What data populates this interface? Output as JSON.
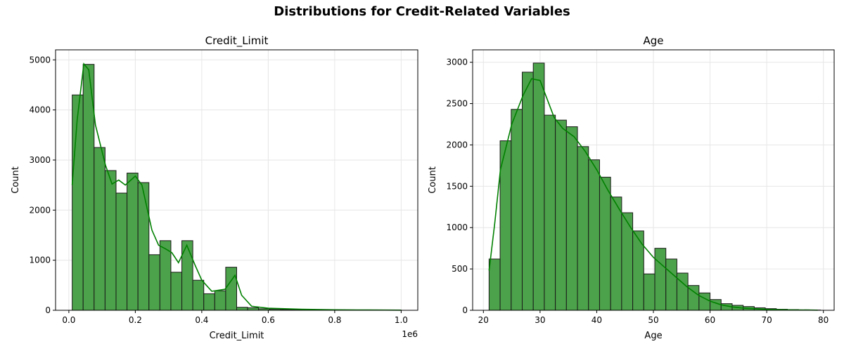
{
  "suptitle": "Distributions for Credit-Related Variables",
  "colors": {
    "bar": "#4ca24a",
    "edge": "#1a1a1a",
    "kde": "#008000",
    "grid": "#e6e6e6"
  },
  "chart_data": [
    {
      "type": "bar",
      "title": "Credit_Limit",
      "xlabel": "Credit_Limit",
      "ylabel": "Count",
      "offset_text": "1e6",
      "bin_start": 0.01,
      "bin_width": 0.033,
      "values": [
        4300,
        4910,
        3250,
        2790,
        2340,
        2740,
        2550,
        1110,
        1390,
        760,
        1390,
        600,
        330,
        390,
        860,
        60,
        50,
        30,
        20,
        15,
        10,
        10,
        8,
        6,
        5,
        4,
        3,
        3,
        2,
        2
      ],
      "kde": [
        [
          0.01,
          2500
        ],
        [
          0.025,
          3800
        ],
        [
          0.045,
          4920
        ],
        [
          0.06,
          4800
        ],
        [
          0.08,
          3700
        ],
        [
          0.11,
          2900
        ],
        [
          0.13,
          2520
        ],
        [
          0.15,
          2600
        ],
        [
          0.17,
          2500
        ],
        [
          0.2,
          2680
        ],
        [
          0.22,
          2500
        ],
        [
          0.25,
          1600
        ],
        [
          0.27,
          1300
        ],
        [
          0.29,
          1230
        ],
        [
          0.31,
          1150
        ],
        [
          0.33,
          950
        ],
        [
          0.355,
          1300
        ],
        [
          0.38,
          900
        ],
        [
          0.4,
          600
        ],
        [
          0.43,
          380
        ],
        [
          0.47,
          420
        ],
        [
          0.5,
          700
        ],
        [
          0.52,
          300
        ],
        [
          0.55,
          80
        ],
        [
          0.6,
          40
        ],
        [
          0.7,
          20
        ],
        [
          0.8,
          10
        ],
        [
          0.9,
          5
        ],
        [
          1.0,
          3
        ]
      ],
      "xlim": [
        -0.04,
        1.05
      ],
      "ylim": [
        0,
        5200
      ],
      "xticks": [
        0.0,
        0.2,
        0.4,
        0.6,
        0.8,
        1.0
      ],
      "xtick_labels": [
        "0.0",
        "0.2",
        "0.4",
        "0.6",
        "0.8",
        "1.0"
      ],
      "yticks": [
        0,
        1000,
        2000,
        3000,
        4000,
        5000
      ],
      "grid": true
    },
    {
      "type": "bar",
      "title": "Age",
      "xlabel": "Age",
      "ylabel": "Count",
      "bin_start": 21,
      "bin_width": 1.95,
      "values": [
        620,
        2050,
        2430,
        2880,
        2990,
        2360,
        2300,
        2220,
        1980,
        1820,
        1610,
        1370,
        1180,
        960,
        440,
        750,
        620,
        450,
        300,
        210,
        130,
        80,
        60,
        45,
        30,
        20,
        12,
        8,
        5,
        3
      ],
      "kde": [
        [
          21,
          480
        ],
        [
          22,
          1050
        ],
        [
          23,
          1700
        ],
        [
          25,
          2250
        ],
        [
          27,
          2600
        ],
        [
          28.5,
          2800
        ],
        [
          30,
          2780
        ],
        [
          31,
          2600
        ],
        [
          32.5,
          2330
        ],
        [
          34,
          2200
        ],
        [
          36,
          2100
        ],
        [
          38,
          1920
        ],
        [
          40,
          1700
        ],
        [
          42,
          1450
        ],
        [
          44,
          1220
        ],
        [
          46,
          1000
        ],
        [
          48,
          800
        ],
        [
          50,
          640
        ],
        [
          52,
          520
        ],
        [
          54,
          400
        ],
        [
          56,
          280
        ],
        [
          58,
          180
        ],
        [
          60,
          110
        ],
        [
          62,
          65
        ],
        [
          64,
          40
        ],
        [
          66,
          25
        ],
        [
          70,
          10
        ],
        [
          74,
          5
        ],
        [
          79,
          2
        ]
      ],
      "xlim": [
        18.1,
        81.9
      ],
      "ylim": [
        0,
        3150
      ],
      "xticks": [
        20,
        30,
        40,
        50,
        60,
        70,
        80
      ],
      "xtick_labels": [
        "20",
        "30",
        "40",
        "50",
        "60",
        "70",
        "80"
      ],
      "yticks": [
        0,
        500,
        1000,
        1500,
        2000,
        2500,
        3000
      ],
      "grid": true
    }
  ]
}
